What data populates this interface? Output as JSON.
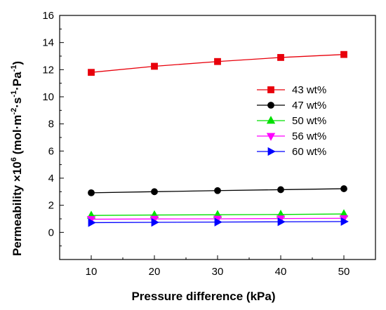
{
  "chart_data": {
    "type": "line",
    "xlabel": "Pressure difference (kPa)",
    "ylabel_main": "Permeability ×10",
    "ylabel_exp": "6",
    "ylabel_unit": "(mol·m",
    "ylabel_unit_exp1": "-2",
    "ylabel_unit_mid1": "·s",
    "ylabel_unit_exp2": "-1",
    "ylabel_unit_mid2": "·Pa",
    "ylabel_unit_exp3": "-1",
    "ylabel_unit_end": ")",
    "xlim": [
      5,
      55
    ],
    "ylim": [
      -2,
      16
    ],
    "x": [
      10,
      20,
      30,
      40,
      50
    ],
    "xticks": [
      10,
      20,
      30,
      40,
      50
    ],
    "yticks": [
      0,
      2,
      4,
      6,
      8,
      10,
      12,
      14,
      16
    ],
    "grid": false,
    "legend_position": "right",
    "series": [
      {
        "name": "43 wt%",
        "color": "#e8000b",
        "marker": "square",
        "values": [
          11.8,
          12.25,
          12.6,
          12.9,
          13.12
        ]
      },
      {
        "name": "47 wt%",
        "color": "#000000",
        "marker": "circle",
        "values": [
          2.92,
          3.0,
          3.08,
          3.15,
          3.22
        ]
      },
      {
        "name": "50 wt%",
        "color": "#00e000",
        "marker": "triangle-up",
        "values": [
          1.25,
          1.28,
          1.3,
          1.32,
          1.36
        ]
      },
      {
        "name": "56 wt%",
        "color": "#ff00ff",
        "marker": "triangle-down",
        "values": [
          0.97,
          0.99,
          1.0,
          1.02,
          1.04
        ]
      },
      {
        "name": "60 wt%",
        "color": "#0000ff",
        "marker": "triangle-right",
        "values": [
          0.72,
          0.74,
          0.76,
          0.78,
          0.8
        ]
      }
    ]
  }
}
